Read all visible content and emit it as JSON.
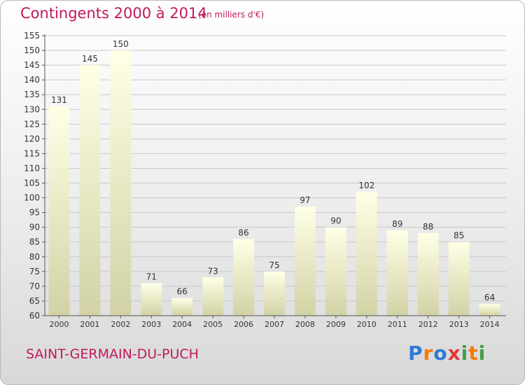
{
  "title": "Contingents 2000 à 2014",
  "subtitle": "(en milliers d'€)",
  "town": "SAINT-GERMAIN-DU-PUCH",
  "logo": {
    "text": "Proxiti",
    "letters": [
      {
        "char": "P",
        "color": "#2e7bd6"
      },
      {
        "char": "r",
        "color": "#f57c00"
      },
      {
        "char": "o",
        "color": "#2e7bd6"
      },
      {
        "char": "x",
        "color": "#e53935"
      },
      {
        "char": "i",
        "color": "#43a047"
      },
      {
        "char": "t",
        "color": "#f57c00"
      },
      {
        "char": "i",
        "color": "#43a047"
      }
    ]
  },
  "chart_data": {
    "type": "bar",
    "categories": [
      "2000",
      "2001",
      "2002",
      "2003",
      "2004",
      "2005",
      "2006",
      "2007",
      "2008",
      "2009",
      "2010",
      "2011",
      "2012",
      "2013",
      "2014"
    ],
    "values": [
      131,
      145,
      150,
      71,
      66,
      73,
      86,
      75,
      97,
      90,
      102,
      89,
      88,
      85,
      64
    ],
    "ylim": [
      60,
      155
    ],
    "yticks": [
      60,
      65,
      70,
      75,
      80,
      85,
      90,
      95,
      100,
      105,
      110,
      115,
      120,
      125,
      130,
      135,
      140,
      145,
      150,
      155
    ],
    "grid": true,
    "colors": {
      "bar_top": "#ffffe6",
      "bar_bottom": "#d2d2a6",
      "text": "#c2185b",
      "label": "#333333",
      "grid": "#c8c8c8"
    }
  }
}
